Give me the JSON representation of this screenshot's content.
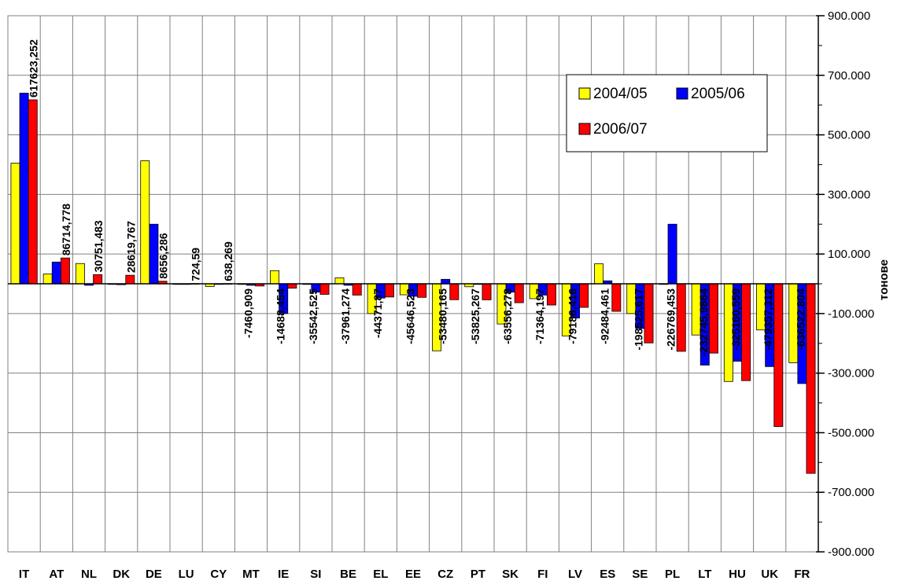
{
  "chart_data": {
    "type": "bar",
    "categories": [
      "IT",
      "AT",
      "NL",
      "DK",
      "DE",
      "LU",
      "CY",
      "MT",
      "IE",
      "SI",
      "BE",
      "EL",
      "EE",
      "CZ",
      "PT",
      "SK",
      "FI",
      "LV",
      "ES",
      "SE",
      "PL",
      "LT",
      "HU",
      "UK",
      "FR"
    ],
    "series": [
      {
        "name": "2004/05",
        "color": "#ffff00",
        "values": [
          405000,
          33000,
          68000,
          0,
          413000,
          0,
          -9000,
          0,
          44000,
          0,
          20000,
          -100000,
          -37000,
          -225000,
          -10000,
          -135000,
          -50000,
          -175000,
          67000,
          -100000,
          0,
          -172000,
          -328000,
          -155000,
          -265000
        ]
      },
      {
        "name": "2005/06",
        "color": "#0000ff",
        "values": [
          640000,
          73000,
          -5000,
          -3000,
          200000,
          0,
          0,
          -5000,
          -100000,
          -28000,
          -5000,
          -48000,
          -42000,
          15000,
          0,
          -28000,
          -38000,
          -115000,
          10000,
          -150000,
          200000,
          -273000,
          -260000,
          -278000,
          -335000
        ]
      },
      {
        "name": "2006/07",
        "color": "#ff0000",
        "values": [
          617623.252,
          86714.778,
          30751.483,
          28619.767,
          8656.286,
          724.59,
          638.269,
          -7460.909,
          -14688.454,
          -35542.525,
          -37961.274,
          -44371.87,
          -45646.523,
          -53480.165,
          -53825.267,
          -63556.278,
          -71364.197,
          -79186.416,
          -92484.461,
          -198525.617,
          -226769.453,
          -232745.9864,
          -325160.559,
          -479357.312,
          -636522.804
        ]
      }
    ],
    "data_labels": [
      "617623,252",
      "86714,778",
      "30751,483",
      "28619,767",
      "8656,286",
      "724,59",
      "638,269",
      "-7460,909",
      "-14688,454",
      "-35542,525",
      "-37961,274",
      "-44371,87",
      "-45646,523",
      "-53480,165",
      "-53825,267",
      "-63556,278",
      "-71364,197",
      "-79186,416",
      "-92484,461",
      "-198525,617",
      "-226769,453",
      "-232745,9864",
      "-325160,559",
      "-479357,312",
      "-636522,804"
    ],
    "y_ticks": [
      {
        "value": 900000,
        "label": "900.000"
      },
      {
        "value": 700000,
        "label": "700.000"
      },
      {
        "value": 500000,
        "label": "500.000"
      },
      {
        "value": 300000,
        "label": "300.000"
      },
      {
        "value": 100000,
        "label": "100.000"
      },
      {
        "value": -100000,
        "label": "-100.000"
      },
      {
        "value": -300000,
        "label": "-300.000"
      },
      {
        "value": -500000,
        "label": "-500.000"
      },
      {
        "value": -700000,
        "label": "-700.000"
      },
      {
        "value": -900000,
        "label": "-900.000"
      }
    ],
    "ylim": [
      -900000,
      900000
    ],
    "ylabel": "тонове",
    "y_axis_position": "right",
    "grid": true,
    "legend": {
      "placement": "top-right",
      "entries": [
        "2004/05",
        "2005/06",
        "2006/07"
      ]
    }
  }
}
